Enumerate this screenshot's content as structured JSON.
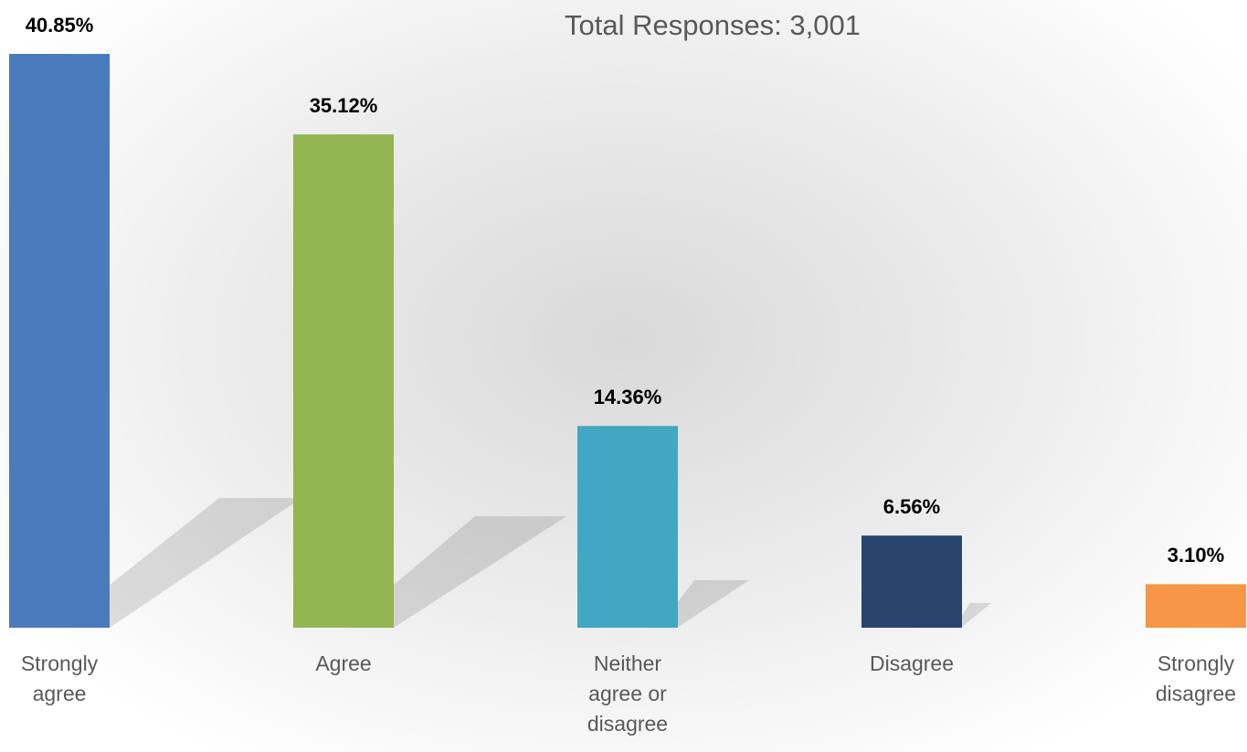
{
  "chart_data": {
    "type": "bar",
    "title": "Total Responses: 3,001",
    "categories": [
      "Strongly agree",
      "Agree",
      "Neither agree or disagree",
      "Disagree",
      "Strongly disagree"
    ],
    "values": [
      40.85,
      35.12,
      14.36,
      6.56,
      3.1
    ],
    "value_labels": [
      "40.85%",
      "35.12%",
      "14.36%",
      "6.56%",
      "3.10%"
    ],
    "colors": [
      "#4a7bbd",
      "#93b552",
      "#42a7c2",
      "#28456d",
      "#f79646"
    ]
  }
}
